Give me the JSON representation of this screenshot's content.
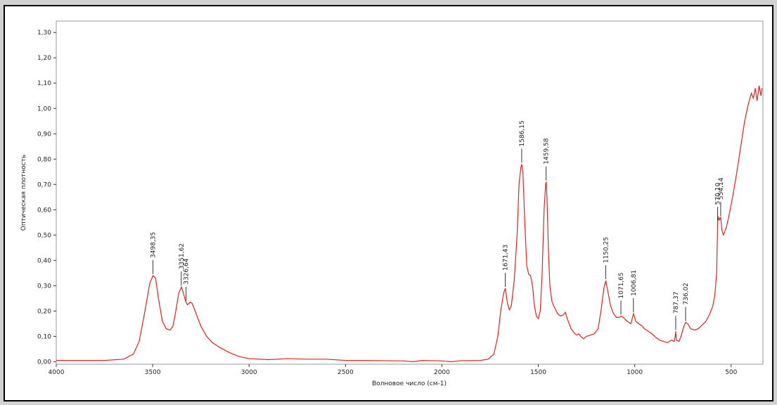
{
  "chart_data": {
    "type": "line",
    "ylabel": "Оптическая плотность",
    "xlabel": "Волновое число (см-1)",
    "color": "#e8201c",
    "grid": false,
    "xlim": [
      4000,
      335
    ],
    "ylim": [
      -0.01,
      1.345
    ],
    "xticks": [
      4000,
      3500,
      3000,
      2500,
      2000,
      1500,
      1000,
      500
    ],
    "yticks": [
      {
        "value": 0,
        "label": "0,00"
      },
      {
        "value": 0.1,
        "label": "0,10"
      },
      {
        "value": 0.2,
        "label": "0,20"
      },
      {
        "value": 0.3,
        "label": "0,30"
      },
      {
        "value": 0.4,
        "label": "0,40"
      },
      {
        "value": 0.5,
        "label": "0,50"
      },
      {
        "value": 0.6,
        "label": "0,60"
      },
      {
        "value": 0.7,
        "label": "0,70"
      },
      {
        "value": 0.8,
        "label": "0,80"
      },
      {
        "value": 0.9,
        "label": "0,90"
      },
      {
        "value": 1.0,
        "label": "1,00"
      },
      {
        "value": 1.1,
        "label": "1,10"
      },
      {
        "value": 1.2,
        "label": "1,20"
      },
      {
        "value": 1.3,
        "label": "1,30"
      }
    ],
    "x": [
      4000,
      3750,
      3650,
      3600,
      3570,
      3540,
      3515,
      3498,
      3485,
      3470,
      3450,
      3430,
      3410,
      3395,
      3380,
      3365,
      3351,
      3340,
      3330,
      3320,
      3305,
      3295,
      3275,
      3250,
      3220,
      3190,
      3150,
      3100,
      3050,
      3000,
      2900,
      2800,
      2700,
      2600,
      2500,
      2400,
      2300,
      2200,
      2150,
      2100,
      2000,
      1950,
      1900,
      1800,
      1760,
      1730,
      1710,
      1695,
      1680,
      1671,
      1660,
      1650,
      1640,
      1625,
      1610,
      1600,
      1590,
      1586,
      1580,
      1570,
      1560,
      1550,
      1540,
      1530,
      1520,
      1510,
      1500,
      1490,
      1480,
      1470,
      1462,
      1459,
      1455,
      1448,
      1440,
      1430,
      1420,
      1400,
      1385,
      1370,
      1360,
      1350,
      1330,
      1310,
      1300,
      1290,
      1280,
      1265,
      1250,
      1230,
      1210,
      1190,
      1175,
      1160,
      1150,
      1140,
      1125,
      1110,
      1095,
      1080,
      1071,
      1060,
      1040,
      1020,
      1006,
      995,
      980,
      960,
      950,
      930,
      910,
      890,
      870,
      850,
      830,
      810,
      795,
      790,
      787,
      784,
      770,
      760,
      745,
      736,
      725,
      710,
      690,
      670,
      650,
      630,
      610,
      595,
      585,
      575,
      570,
      565,
      560,
      554,
      548,
      540,
      525,
      510,
      490,
      470,
      450,
      430,
      410,
      395,
      385,
      375,
      365,
      355,
      345,
      340
    ],
    "values": [
      0.005,
      0.005,
      0.01,
      0.03,
      0.08,
      0.2,
      0.31,
      0.34,
      0.33,
      0.25,
      0.16,
      0.13,
      0.125,
      0.14,
      0.2,
      0.27,
      0.295,
      0.27,
      0.24,
      0.225,
      0.235,
      0.23,
      0.19,
      0.14,
      0.1,
      0.075,
      0.055,
      0.035,
      0.02,
      0.012,
      0.008,
      0.012,
      0.01,
      0.01,
      0.005,
      0.005,
      0.004,
      0.003,
      0.0,
      0.005,
      0.003,
      0.0,
      0.004,
      0.005,
      0.01,
      0.03,
      0.1,
      0.2,
      0.27,
      0.29,
      0.23,
      0.205,
      0.22,
      0.32,
      0.5,
      0.7,
      0.77,
      0.78,
      0.75,
      0.55,
      0.38,
      0.345,
      0.34,
      0.3,
      0.22,
      0.18,
      0.17,
      0.2,
      0.35,
      0.6,
      0.7,
      0.71,
      0.65,
      0.45,
      0.3,
      0.24,
      0.22,
      0.19,
      0.18,
      0.185,
      0.195,
      0.17,
      0.13,
      0.11,
      0.105,
      0.11,
      0.1,
      0.09,
      0.1,
      0.105,
      0.11,
      0.13,
      0.2,
      0.29,
      0.32,
      0.28,
      0.22,
      0.19,
      0.175,
      0.175,
      0.18,
      0.175,
      0.16,
      0.15,
      0.19,
      0.16,
      0.15,
      0.14,
      0.13,
      0.12,
      0.11,
      0.095,
      0.085,
      0.08,
      0.075,
      0.085,
      0.08,
      0.1,
      0.12,
      0.085,
      0.08,
      0.1,
      0.14,
      0.155,
      0.15,
      0.13,
      0.125,
      0.13,
      0.145,
      0.16,
      0.19,
      0.22,
      0.26,
      0.35,
      0.55,
      0.57,
      0.56,
      0.57,
      0.52,
      0.5,
      0.53,
      0.58,
      0.66,
      0.75,
      0.85,
      0.95,
      1.02,
      1.06,
      1.04,
      1.08,
      1.03,
      1.09,
      1.05,
      1.08
    ],
    "peaks": [
      {
        "value": 3498.35,
        "label": "3498,35",
        "y": 0.34
      },
      {
        "value": 3351.62,
        "label": "3351,62",
        "y": 0.295
      },
      {
        "value": 3326.64,
        "label": "3326,64",
        "y": 0.235
      },
      {
        "value": 1671.43,
        "label": "1671,43",
        "y": 0.29
      },
      {
        "value": 1586.15,
        "label": "1586,15",
        "y": 0.78
      },
      {
        "value": 1459.58,
        "label": "1459,58",
        "y": 0.71
      },
      {
        "value": 1150.25,
        "label": "1150,25",
        "y": 0.32
      },
      {
        "value": 1071.65,
        "label": "1071,65",
        "y": 0.18
      },
      {
        "value": 1006.81,
        "label": "1006,81",
        "y": 0.19
      },
      {
        "value": 787.37,
        "label": "787,37",
        "y": 0.12
      },
      {
        "value": 736.02,
        "label": "736,02",
        "y": 0.155
      },
      {
        "value": 570.1,
        "label": "570,10",
        "y": 0.55
      },
      {
        "value": 554.14,
        "label": "554,14",
        "y": 0.57
      }
    ]
  }
}
